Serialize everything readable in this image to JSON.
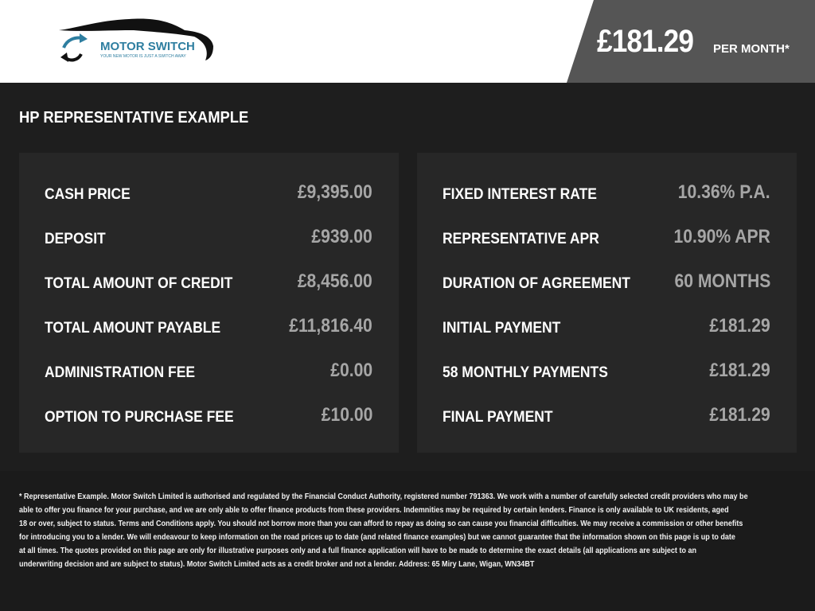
{
  "header": {
    "logo": {
      "name": "MOTOR SWITCH",
      "tagline": "YOUR NEW MOTOR IS JUST A SWITCH AWAY",
      "brand_color": "#2e7ea0"
    },
    "price": "£181.29",
    "price_suffix": "PER MONTH*"
  },
  "section_title": "HP REPRESENTATIVE EXAMPLE",
  "left_panel": [
    {
      "label": "CASH PRICE",
      "value": "£9,395.00"
    },
    {
      "label": "DEPOSIT",
      "value": "£939.00"
    },
    {
      "label": "TOTAL AMOUNT OF CREDIT",
      "value": "£8,456.00"
    },
    {
      "label": "TOTAL AMOUNT PAYABLE",
      "value": "£11,816.40"
    },
    {
      "label": "ADMINISTRATION FEE",
      "value": "£0.00"
    },
    {
      "label": "OPTION TO PURCHASE FEE",
      "value": "£10.00"
    }
  ],
  "right_panel": [
    {
      "label": "FIXED INTEREST RATE",
      "value": "10.36% P.A."
    },
    {
      "label": "REPRESENTATIVE APR",
      "value": "10.90% APR"
    },
    {
      "label": "DURATION OF AGREEMENT",
      "value": "60 MONTHS"
    },
    {
      "label": "INITIAL PAYMENT",
      "value": "£181.29"
    },
    {
      "label": "58 MONTHLY PAYMENTS",
      "value": "£181.29"
    },
    {
      "label": "FINAL PAYMENT",
      "value": "£181.29"
    }
  ],
  "disclaimer_lines": [
    "* Representative Example. Motor Switch Limited  is authorised and regulated by the Financial Conduct Authority, registered number 791363. We work with a number of carefully selected credit providers who may be",
    "able to offer you finance for your purchase, and we are only able to offer finance products from these providers. Indemnities may be required by certain lenders. Finance is only available to UK residents, aged",
    "18 or over, subject to status. Terms and Conditions apply. You should not borrow more than you can afford to repay as doing so can cause you financial difficulties. We may receive a commission or other benefits",
    "for introducing you to a lender. We will endeavour to keep information on the road prices up to date (and related finance examples) but we cannot guarantee that the information shown on this page is up to date",
    "at all times. The quotes provided on this page are only for illustrative purposes only and a full finance application will have to be made to determine the exact details (all applications are subject to an",
    "underwriting decision and are subject to status). Motor Switch Limited  acts as a credit broker and not a lender. Address: 65 Miry Lane, Wigan, WN34BT"
  ]
}
